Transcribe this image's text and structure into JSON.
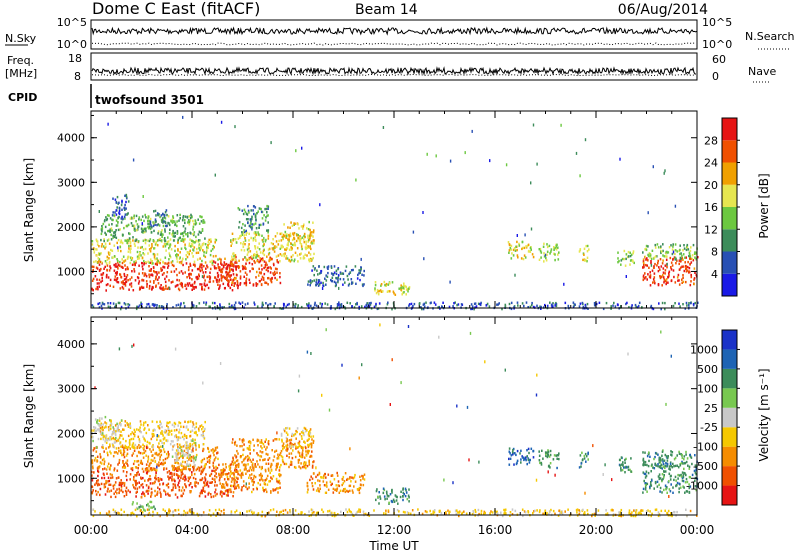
{
  "header": {
    "title": "Dome C East (fitACF)",
    "beam": "Beam 14",
    "date": "06/Aug/2014"
  },
  "strips": {
    "nsky_label": "N.Sky",
    "nsky_ticks": [
      "10^5",
      "10^0"
    ],
    "nsearch_label": "N.Search",
    "nsearch_ticks": [
      "10^5",
      "10^0"
    ],
    "freq_label": "Freq.",
    "freq_unit": "[MHz]",
    "freq_ticks": [
      "18",
      "8"
    ],
    "nave_label": "Nave",
    "nave_ticks": [
      "60",
      "0"
    ],
    "cpid_label": "CPID",
    "cpid_value": "twofsound 3501"
  },
  "colors": {
    "power": [
      "#1a1ae6",
      "#2850b4",
      "#3c8c5a",
      "#6cc840",
      "#e6e650",
      "#f0a000",
      "#f05000",
      "#e61414"
    ],
    "velocity": [
      "#e61414",
      "#f05000",
      "#f58c00",
      "#f5c800",
      "#c8c8c8",
      "#78c850",
      "#3c8c5a",
      "#1e64b4",
      "#1a32c8"
    ]
  },
  "chart_data": [
    {
      "type": "heatmap",
      "panel": "power",
      "xlabel": "",
      "ylabel": "Slant Range [km]",
      "xlim": [
        0,
        24
      ],
      "ylim": [
        180,
        4600
      ],
      "yticks": [
        "1000",
        "2000",
        "3000",
        "4000"
      ],
      "colorbar": {
        "label": "Power [dB]",
        "ticks": [
          "4",
          "8",
          "12",
          "16",
          "20",
          "24",
          "28"
        ],
        "range": [
          0,
          30
        ]
      },
      "regions": [
        {
          "t0": 0.0,
          "t1": 5.8,
          "r0": 600,
          "r1": 1250,
          "v": 27
        },
        {
          "t0": 0.0,
          "t1": 5.0,
          "r0": 1200,
          "r1": 1750,
          "v": 17
        },
        {
          "t0": 0.3,
          "t1": 4.5,
          "r0": 1700,
          "r1": 2300,
          "v": 12
        },
        {
          "t0": 0.8,
          "t1": 1.5,
          "r0": 2200,
          "r1": 2750,
          "v": 6
        },
        {
          "t0": 2.3,
          "t1": 3.0,
          "r0": 2000,
          "r1": 2400,
          "v": 8
        },
        {
          "t0": 5.0,
          "t1": 7.5,
          "r0": 700,
          "r1": 1350,
          "v": 26
        },
        {
          "t0": 5.5,
          "t1": 8.8,
          "r0": 1250,
          "r1": 1900,
          "v": 17
        },
        {
          "t0": 5.8,
          "t1": 7.0,
          "r0": 1900,
          "r1": 2500,
          "v": 10
        },
        {
          "t0": 7.5,
          "t1": 8.8,
          "r0": 1700,
          "r1": 2150,
          "v": 18
        },
        {
          "t0": 8.5,
          "t1": 10.8,
          "r0": 700,
          "r1": 1150,
          "v": 7
        },
        {
          "t0": 11.2,
          "t1": 12.6,
          "r0": 450,
          "r1": 800,
          "v": 17
        },
        {
          "t0": 16.5,
          "t1": 17.5,
          "r0": 1300,
          "r1": 1700,
          "v": 17
        },
        {
          "t0": 17.7,
          "t1": 18.5,
          "r0": 1250,
          "r1": 1650,
          "v": 15
        },
        {
          "t0": 19.3,
          "t1": 19.7,
          "r0": 1250,
          "r1": 1600,
          "v": 16
        },
        {
          "t0": 20.8,
          "t1": 21.5,
          "r0": 1150,
          "r1": 1500,
          "v": 14
        },
        {
          "t0": 21.8,
          "t1": 24.0,
          "r0": 700,
          "r1": 1350,
          "v": 26
        },
        {
          "t0": 21.8,
          "t1": 24.0,
          "r0": 1300,
          "r1": 1650,
          "v": 13
        },
        {
          "t0": 0.0,
          "t1": 24.0,
          "r0": 180,
          "r1": 330,
          "v": 6
        }
      ]
    },
    {
      "type": "heatmap",
      "panel": "velocity",
      "xlabel": "Time UT",
      "ylabel": "Slant Range [km]",
      "xlim": [
        0,
        24
      ],
      "ylim": [
        180,
        4600
      ],
      "xticks": [
        "00:00",
        "04:00",
        "08:00",
        "12:00",
        "16:00",
        "20:00",
        "00:00"
      ],
      "yticks": [
        "1000",
        "2000",
        "3000",
        "4000"
      ],
      "colorbar": {
        "label": "Velocity [m s⁻¹]",
        "ticks": [
          "1000",
          "500",
          "100",
          "25",
          "-25",
          "-100",
          "-500",
          "-1000"
        ]
      },
      "regions": [
        {
          "t0": 0.0,
          "t1": 5.8,
          "r0": 600,
          "r1": 1250,
          "v": 1
        },
        {
          "t0": 0.0,
          "t1": 5.0,
          "r0": 1200,
          "r1": 1750,
          "v": 2
        },
        {
          "t0": 0.3,
          "t1": 4.5,
          "r0": 1700,
          "r1": 2300,
          "v": 3
        },
        {
          "t0": 0.0,
          "t1": 1.2,
          "r0": 1850,
          "r1": 2400,
          "v": 4
        },
        {
          "t0": 3.2,
          "t1": 4.2,
          "r0": 1300,
          "r1": 1900,
          "v": 4
        },
        {
          "t0": 5.0,
          "t1": 7.5,
          "r0": 700,
          "r1": 1350,
          "v": 2
        },
        {
          "t0": 5.5,
          "t1": 8.8,
          "r0": 1250,
          "r1": 1900,
          "v": 2
        },
        {
          "t0": 7.5,
          "t1": 8.8,
          "r0": 1700,
          "r1": 2150,
          "v": 3
        },
        {
          "t0": 1.5,
          "t1": 2.6,
          "r0": 300,
          "r1": 500,
          "v": 5
        },
        {
          "t0": 8.5,
          "t1": 10.8,
          "r0": 700,
          "r1": 1150,
          "v": 2
        },
        {
          "t0": 11.2,
          "t1": 12.6,
          "r0": 450,
          "r1": 800,
          "v": 6
        },
        {
          "t0": 16.5,
          "t1": 17.5,
          "r0": 1300,
          "r1": 1700,
          "v": 7
        },
        {
          "t0": 17.7,
          "t1": 18.5,
          "r0": 1250,
          "r1": 1650,
          "v": 6
        },
        {
          "t0": 19.3,
          "t1": 19.7,
          "r0": 1250,
          "r1": 1600,
          "v": 6
        },
        {
          "t0": 20.8,
          "t1": 21.5,
          "r0": 1150,
          "r1": 1500,
          "v": 6
        },
        {
          "t0": 21.8,
          "t1": 24.0,
          "r0": 700,
          "r1": 1350,
          "v": 6
        },
        {
          "t0": 21.8,
          "t1": 24.0,
          "r0": 1300,
          "r1": 1650,
          "v": 6
        },
        {
          "t0": 0.0,
          "t1": 24.0,
          "r0": 180,
          "r1": 330,
          "v": 3
        }
      ]
    }
  ]
}
